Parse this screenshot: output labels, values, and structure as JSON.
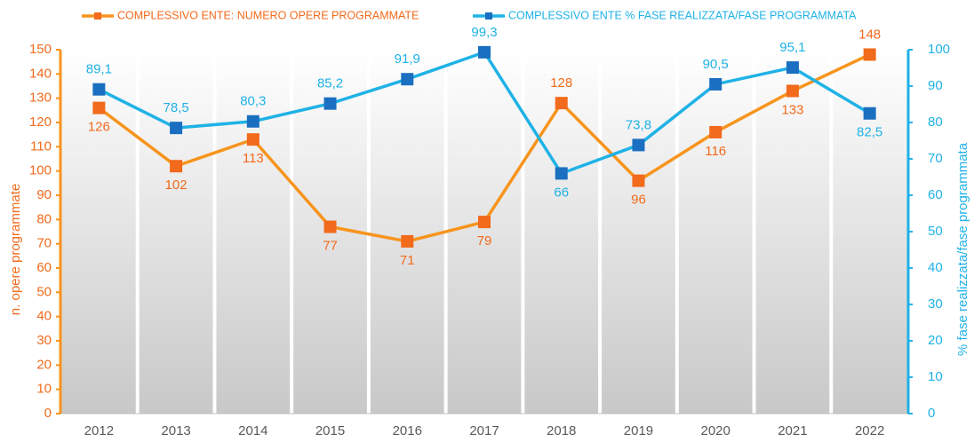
{
  "chart_data": {
    "type": "line",
    "categories": [
      "2012",
      "2013",
      "2014",
      "2015",
      "2016",
      "2017",
      "2018",
      "2019",
      "2020",
      "2021",
      "2022"
    ],
    "series": [
      {
        "name": "COMPLESSIVO ENTE: NUMERO OPERE PROGRAMMATE",
        "color": "#f7941d",
        "marker_color": "#f26a1b",
        "axis": "y",
        "values": [
          126,
          102,
          113,
          77,
          71,
          79,
          128,
          96,
          116,
          133,
          148
        ]
      },
      {
        "name": "COMPLESSIVO ENTE % FASE REALIZZATA/FASE PROGRAMMATA",
        "color": "#1fb2e6",
        "marker_color": "#1a6fc0",
        "axis": "y2",
        "values": [
          89.1,
          78.5,
          80.3,
          85.2,
          91.9,
          99.3,
          66,
          73.8,
          90.5,
          95.1,
          82.5
        ],
        "value_labels": [
          "89,1",
          "78,5",
          "80,3",
          "85,2",
          "91,9",
          "99,3",
          "66",
          "73,8",
          "90,5",
          "95,1",
          "82,5"
        ]
      }
    ],
    "ylabel": "n. opere programmate",
    "y2label": "% fase realizzata/fase programmata",
    "ylim": [
      0,
      150
    ],
    "yticks": [
      0,
      10,
      20,
      30,
      40,
      50,
      60,
      70,
      80,
      90,
      100,
      110,
      120,
      130,
      140,
      150
    ],
    "y2lim": [
      0,
      100
    ],
    "y2ticks": [
      0,
      10,
      20,
      30,
      40,
      50,
      60,
      70,
      80,
      90,
      100
    ],
    "legend": "top"
  }
}
